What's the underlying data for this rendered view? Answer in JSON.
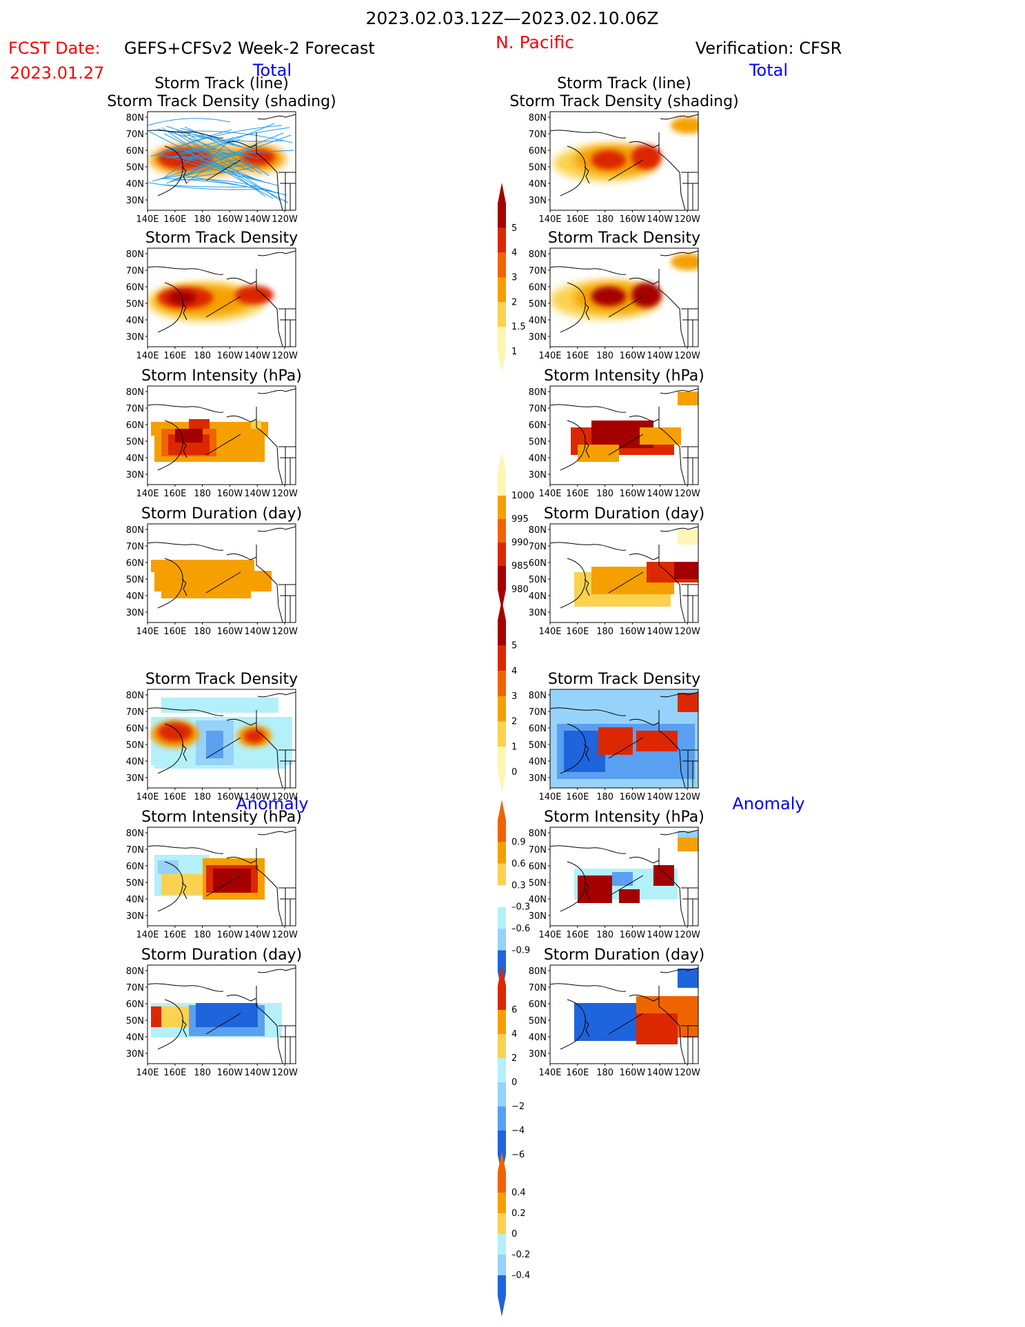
{
  "header": {
    "period": "2023.02.03.12Z—2023.02.10.06Z",
    "region": "N. Pacific",
    "fcst_prefix": "FCST Date:",
    "model": "GEFS+CFSv2 Week-2 Forecast",
    "fcst_date": "2023.01.27",
    "verification": "Verification: CFSR",
    "total_left": "Total",
    "total_right": "Total",
    "anomaly_left": "Anomaly",
    "anomaly_right": "Anomaly"
  },
  "panel_titles": {
    "track_line": "Storm Track (line)",
    "track_density_shading": "Storm Track Density (shading)",
    "track_density": "Storm Track Density",
    "intensity": "Storm Intensity (hPa)",
    "duration": "Storm Duration (day)"
  },
  "axes": {
    "lat_labels": [
      "80N",
      "70N",
      "60N",
      "50N",
      "40N",
      "30N"
    ],
    "lon_labels": [
      "140E",
      "160E",
      "180",
      "160W",
      "140W",
      "120W"
    ]
  },
  "colorbars": {
    "density": [
      "5",
      "4",
      "3",
      "2",
      "1.5",
      "1"
    ],
    "intensity": [
      "1000",
      "995",
      "990",
      "985",
      "980"
    ],
    "duration": [
      "5",
      "4",
      "3",
      "2",
      "1",
      "0"
    ],
    "density_anom": [
      "0.9",
      "0.6",
      "0.3",
      "–0.3",
      "–0.6",
      "–0.9"
    ],
    "intensity_anom": [
      "6",
      "4",
      "2",
      "0",
      "−2",
      "−4",
      "−6"
    ],
    "duration_anom": [
      "0.4",
      "0.2",
      "0",
      "–0.2",
      "–0.4"
    ]
  },
  "colors": {
    "dark_red": "#a50000",
    "red": "#dc2800",
    "orange_red": "#f06400",
    "orange": "#f5a000",
    "light_orange": "#fad250",
    "pale_yellow": "#fff5b4",
    "pale_blue": "#b4f0fa",
    "light_blue": "#96d2fa",
    "mid_blue": "#5aa0f0",
    "blue": "#1e64dc",
    "track_line": "#1e9bf0",
    "title_red": "#ff0000",
    "title_blue": "#0000ff"
  }
}
